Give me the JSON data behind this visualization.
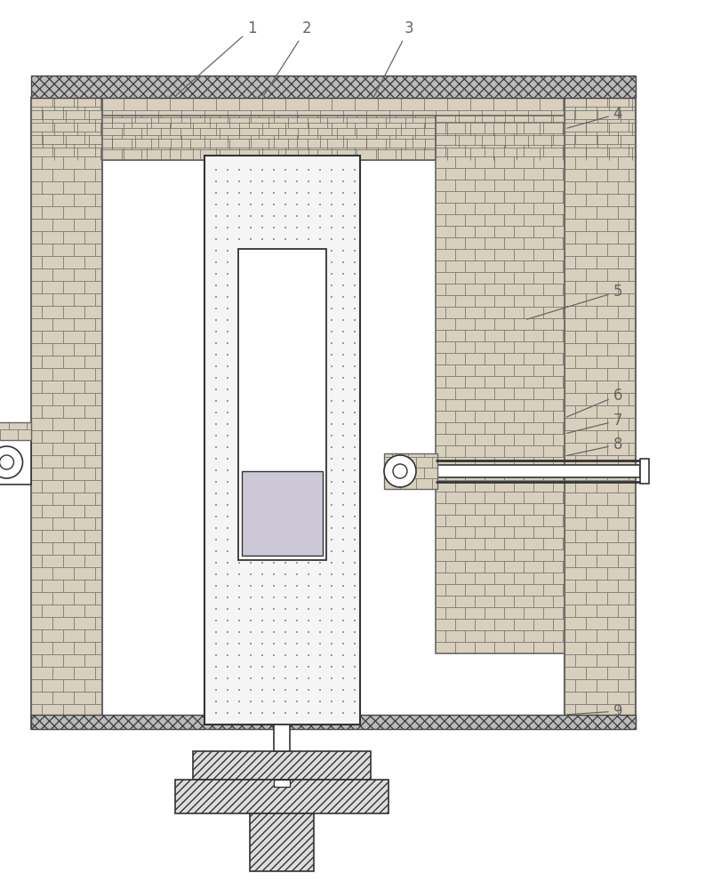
{
  "bg_color": "#ffffff",
  "brick_fc": "#d8d0bc",
  "brick_ec": "#666666",
  "line_color": "#333333",
  "label_color": "#666666",
  "label_fontsize": 12,
  "crystal_fc": "#cac6d8",
  "dot_color": "#aaaaaa",
  "hatch_fc": "#cccccc"
}
